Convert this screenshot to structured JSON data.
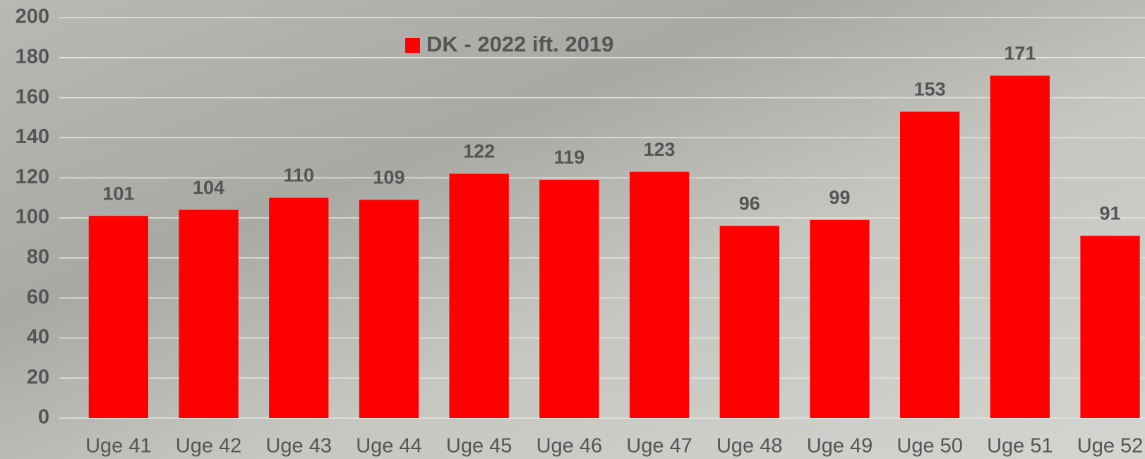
{
  "chart_data": {
    "type": "bar",
    "categories": [
      "Uge 41",
      "Uge 42",
      "Uge 43",
      "Uge 44",
      "Uge 45",
      "Uge 46",
      "Uge 47",
      "Uge 48",
      "Uge 49",
      "Uge 50",
      "Uge 51",
      "Uge 52"
    ],
    "series": [
      {
        "name": "DK - 2022 ift. 2019",
        "color": "#ff0000",
        "values": [
          101,
          104,
          110,
          109,
          122,
          119,
          123,
          96,
          99,
          153,
          171,
          91
        ]
      }
    ],
    "ylim": [
      0,
      200
    ],
    "yticks": [
      0,
      20,
      40,
      60,
      80,
      100,
      120,
      140,
      160,
      180,
      200
    ],
    "grid": true,
    "legend": "top"
  }
}
